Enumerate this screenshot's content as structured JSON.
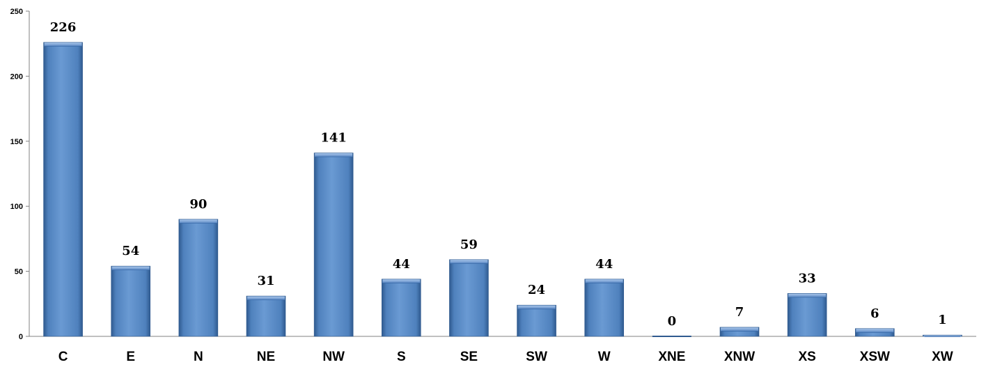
{
  "chart_data": {
    "type": "bar",
    "title": "",
    "xlabel": "",
    "ylabel": "",
    "categories": [
      "C",
      "E",
      "N",
      "NE",
      "NW",
      "S",
      "SE",
      "SW",
      "W",
      "XNE",
      "XNW",
      "XS",
      "XSW",
      "XW"
    ],
    "values": [
      226,
      54,
      90,
      31,
      141,
      44,
      59,
      24,
      44,
      0,
      7,
      33,
      6,
      1
    ],
    "data_labels": [
      "226",
      "54",
      "90",
      "31",
      "141",
      "44",
      "59",
      "24",
      "44",
      "0",
      "7",
      "33",
      "6",
      "1"
    ],
    "ylim": [
      0,
      250
    ],
    "yticks": [
      0,
      50,
      100,
      150,
      200,
      250
    ],
    "ytick_labels": [
      "0",
      "50",
      "100",
      "150",
      "200",
      "250"
    ],
    "grid": false,
    "legend": "none",
    "colors": {
      "bar": "#4f81bd",
      "bar_light": "#8db3e2",
      "bar_dark": "#2f5a8f",
      "axis": "#808080"
    }
  }
}
